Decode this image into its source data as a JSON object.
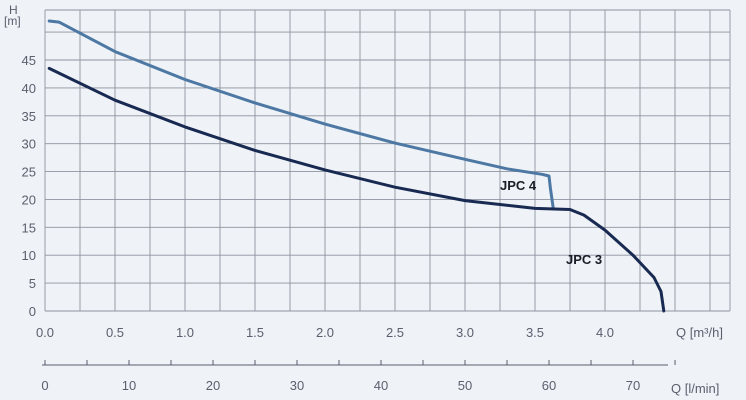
{
  "chart_data": {
    "type": "line",
    "y_axis": {
      "label": "H",
      "unit": "[m]",
      "ylim": [
        0,
        51
      ],
      "ticks": [
        "0",
        "5",
        "10",
        "15",
        "20",
        "25",
        "30",
        "35",
        "40",
        "45"
      ]
    },
    "x_axis": {
      "xlim": [
        0,
        5.0
      ],
      "ticks": [
        "0.0",
        "0.5",
        "1.0",
        "1.5",
        "2.0",
        "2.5",
        "3.0",
        "3.5",
        "4.0"
      ],
      "label": "Q [m³/h]"
    },
    "x_axis_secondary": {
      "xlim": [
        0,
        83.33
      ],
      "ticks": [
        "0",
        "10",
        "20",
        "30",
        "40",
        "50",
        "60",
        "70"
      ],
      "label": "Q [l/min]"
    },
    "grid": true,
    "series": [
      {
        "name": "JPC 4",
        "color": "#4d78a4",
        "points": [
          [
            0.03,
            52
          ],
          [
            0.1,
            51.8
          ],
          [
            0.5,
            46.5
          ],
          [
            1.0,
            41.5
          ],
          [
            1.5,
            37.3
          ],
          [
            2.0,
            33.5
          ],
          [
            2.5,
            30.1
          ],
          [
            3.0,
            27.2
          ],
          [
            3.3,
            25.5
          ],
          [
            3.55,
            24.5
          ],
          [
            3.6,
            24.2
          ],
          [
            3.61,
            22
          ],
          [
            3.63,
            18.5
          ]
        ]
      },
      {
        "name": "JPC 3",
        "color": "#182a52",
        "points": [
          [
            0.03,
            43.5
          ],
          [
            0.5,
            37.8
          ],
          [
            1.0,
            33.0
          ],
          [
            1.5,
            28.8
          ],
          [
            2.0,
            25.3
          ],
          [
            2.5,
            22.2
          ],
          [
            3.0,
            19.8
          ],
          [
            3.5,
            18.4
          ],
          [
            3.75,
            18.2
          ],
          [
            3.85,
            17.2
          ],
          [
            4.0,
            14.5
          ],
          [
            4.2,
            10.0
          ],
          [
            4.35,
            6.0
          ],
          [
            4.4,
            3.5
          ],
          [
            4.42,
            0
          ]
        ]
      }
    ]
  }
}
